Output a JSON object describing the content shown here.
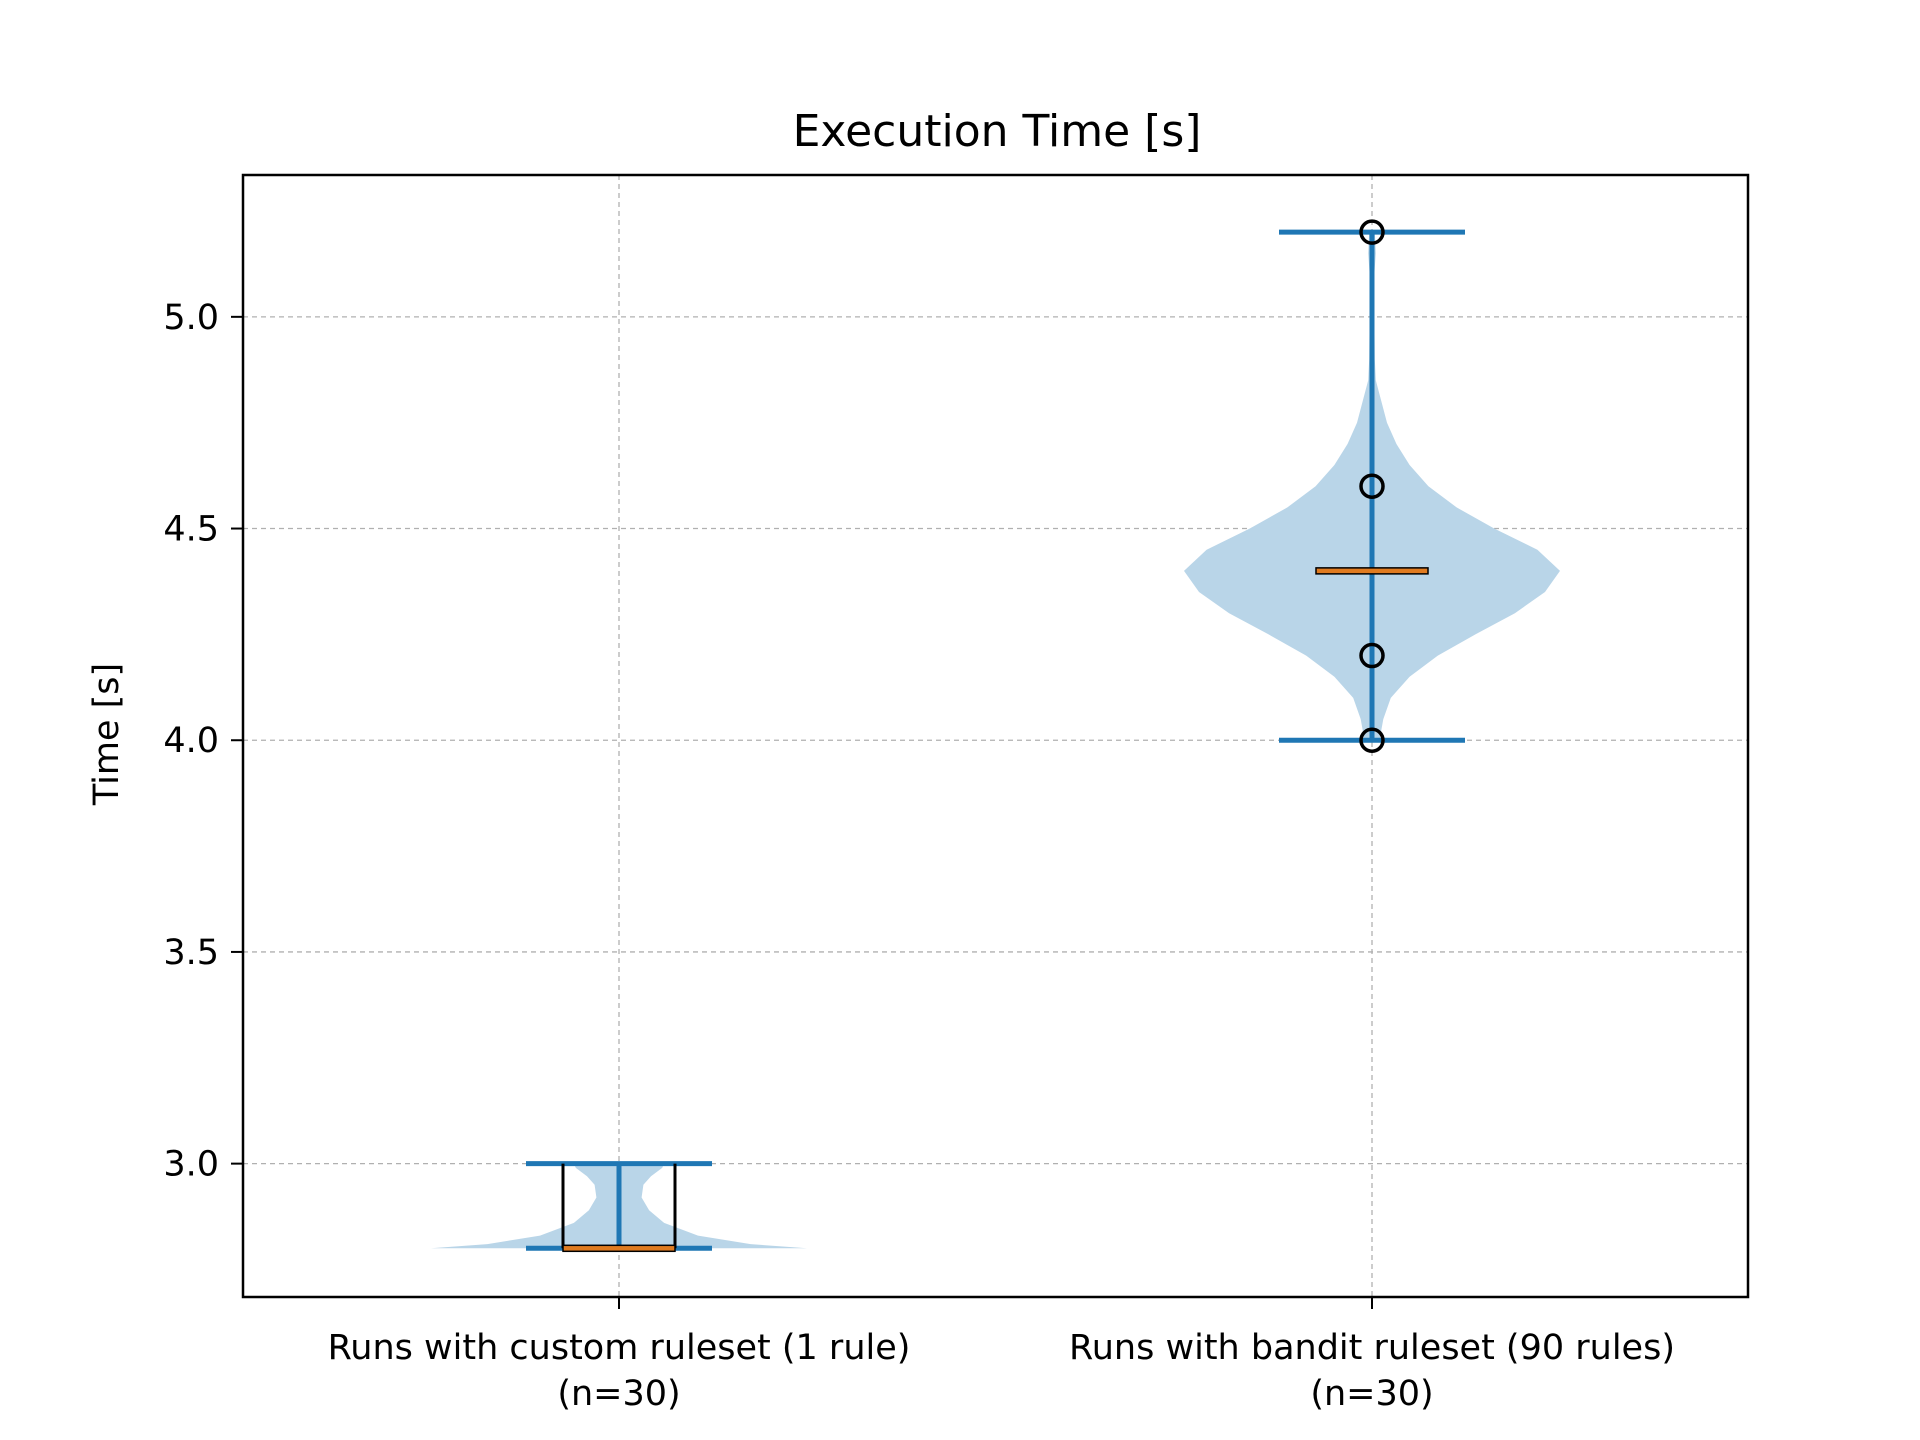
{
  "chart_data": {
    "type": "violin",
    "title": "Execution Time [s]",
    "ylabel": "Time [s]",
    "xlabel": "",
    "ylim": [
      2.685,
      5.335
    ],
    "yticks": [
      3.0,
      3.5,
      4.0,
      4.5,
      5.0
    ],
    "ytick_labels": [
      "3.0",
      "3.5",
      "4.0",
      "4.5",
      "5.0"
    ],
    "grid": true,
    "categories": [
      "Runs with custom ruleset (1 rule)\n(n=30)",
      "Runs with bandit ruleset (90 rules)\n(n=30)"
    ],
    "series": [
      {
        "min": 2.8,
        "max": 3.0,
        "median": 2.8,
        "q1": 2.8,
        "q3": 3.0,
        "outliers": [],
        "density": [
          [
            2.8,
            1.0
          ],
          [
            2.81,
            0.7
          ],
          [
            2.83,
            0.42
          ],
          [
            2.86,
            0.24
          ],
          [
            2.89,
            0.16
          ],
          [
            2.92,
            0.12
          ],
          [
            2.95,
            0.13
          ],
          [
            2.97,
            0.17
          ],
          [
            2.99,
            0.23
          ],
          [
            3.0,
            0.24
          ]
        ]
      },
      {
        "min": 4.0,
        "max": 5.2,
        "median": 4.4,
        "outliers": [
          4.0,
          4.2,
          4.6,
          5.2
        ],
        "density": [
          [
            4.0,
            0.04
          ],
          [
            4.05,
            0.06
          ],
          [
            4.1,
            0.1
          ],
          [
            4.15,
            0.2
          ],
          [
            4.2,
            0.35
          ],
          [
            4.25,
            0.55
          ],
          [
            4.3,
            0.76
          ],
          [
            4.35,
            0.92
          ],
          [
            4.4,
            1.0
          ],
          [
            4.45,
            0.88
          ],
          [
            4.5,
            0.65
          ],
          [
            4.55,
            0.45
          ],
          [
            4.6,
            0.3
          ],
          [
            4.65,
            0.2
          ],
          [
            4.7,
            0.13
          ],
          [
            4.75,
            0.08
          ],
          [
            4.8,
            0.05
          ],
          [
            4.85,
            0.02
          ],
          [
            4.9,
            0.015
          ],
          [
            5.0,
            0.012
          ],
          [
            5.1,
            0.012
          ],
          [
            5.15,
            0.02
          ],
          [
            5.2,
            0.015
          ]
        ]
      }
    ],
    "colors": {
      "violin_fill": "#b9d5e8",
      "whisker": "#1f77b4",
      "median": "#e07b20",
      "box_edge": "#000000",
      "grid": "#b0b0b0"
    }
  }
}
